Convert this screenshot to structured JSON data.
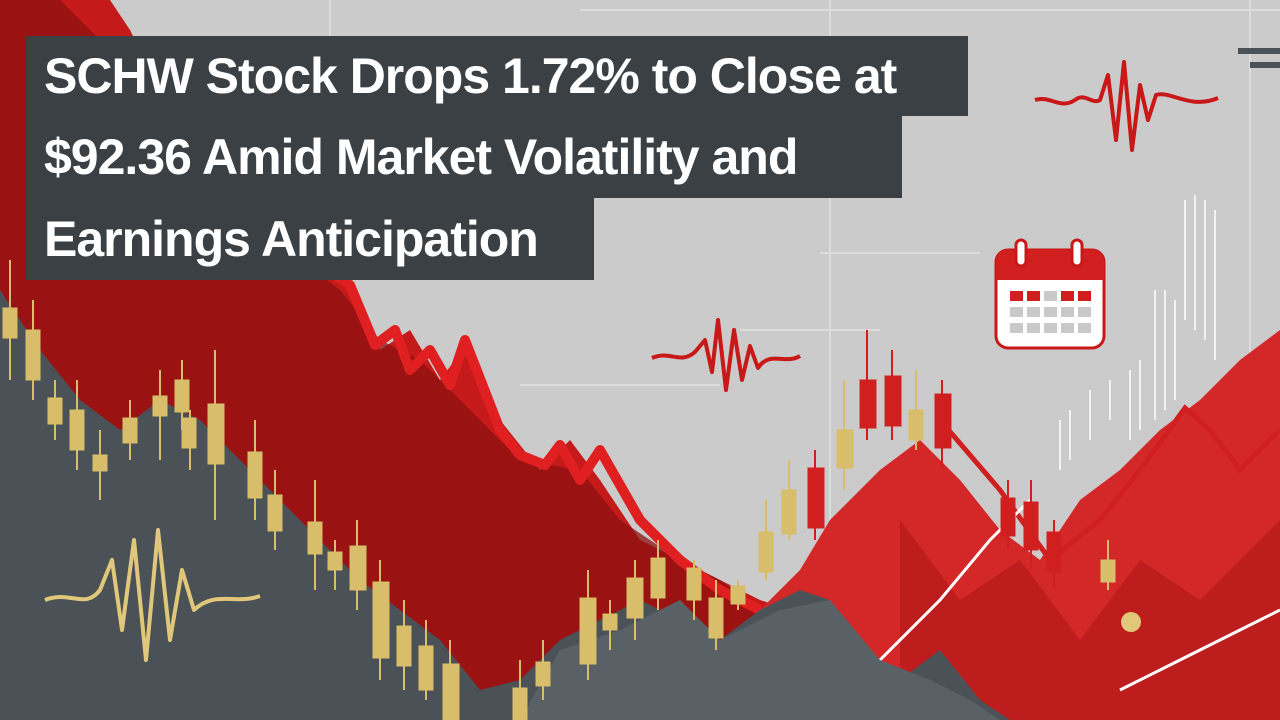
{
  "headline": {
    "line1": "SCHW Stock Drops 1.72% to Close at",
    "line2": "$92.36 Amid Market Volatility and",
    "line3": "Earnings Anticipation"
  },
  "colors": {
    "background": "#c9c9c9",
    "dark_area": "#4b5257",
    "red": "#d11f1f",
    "dark_red": "#8c1010",
    "gold": "#d8bd6a",
    "caption_bg": "#3b4045",
    "caption_text": "#ffffff"
  },
  "icons": [
    "calendar-icon",
    "waveform-icon"
  ]
}
